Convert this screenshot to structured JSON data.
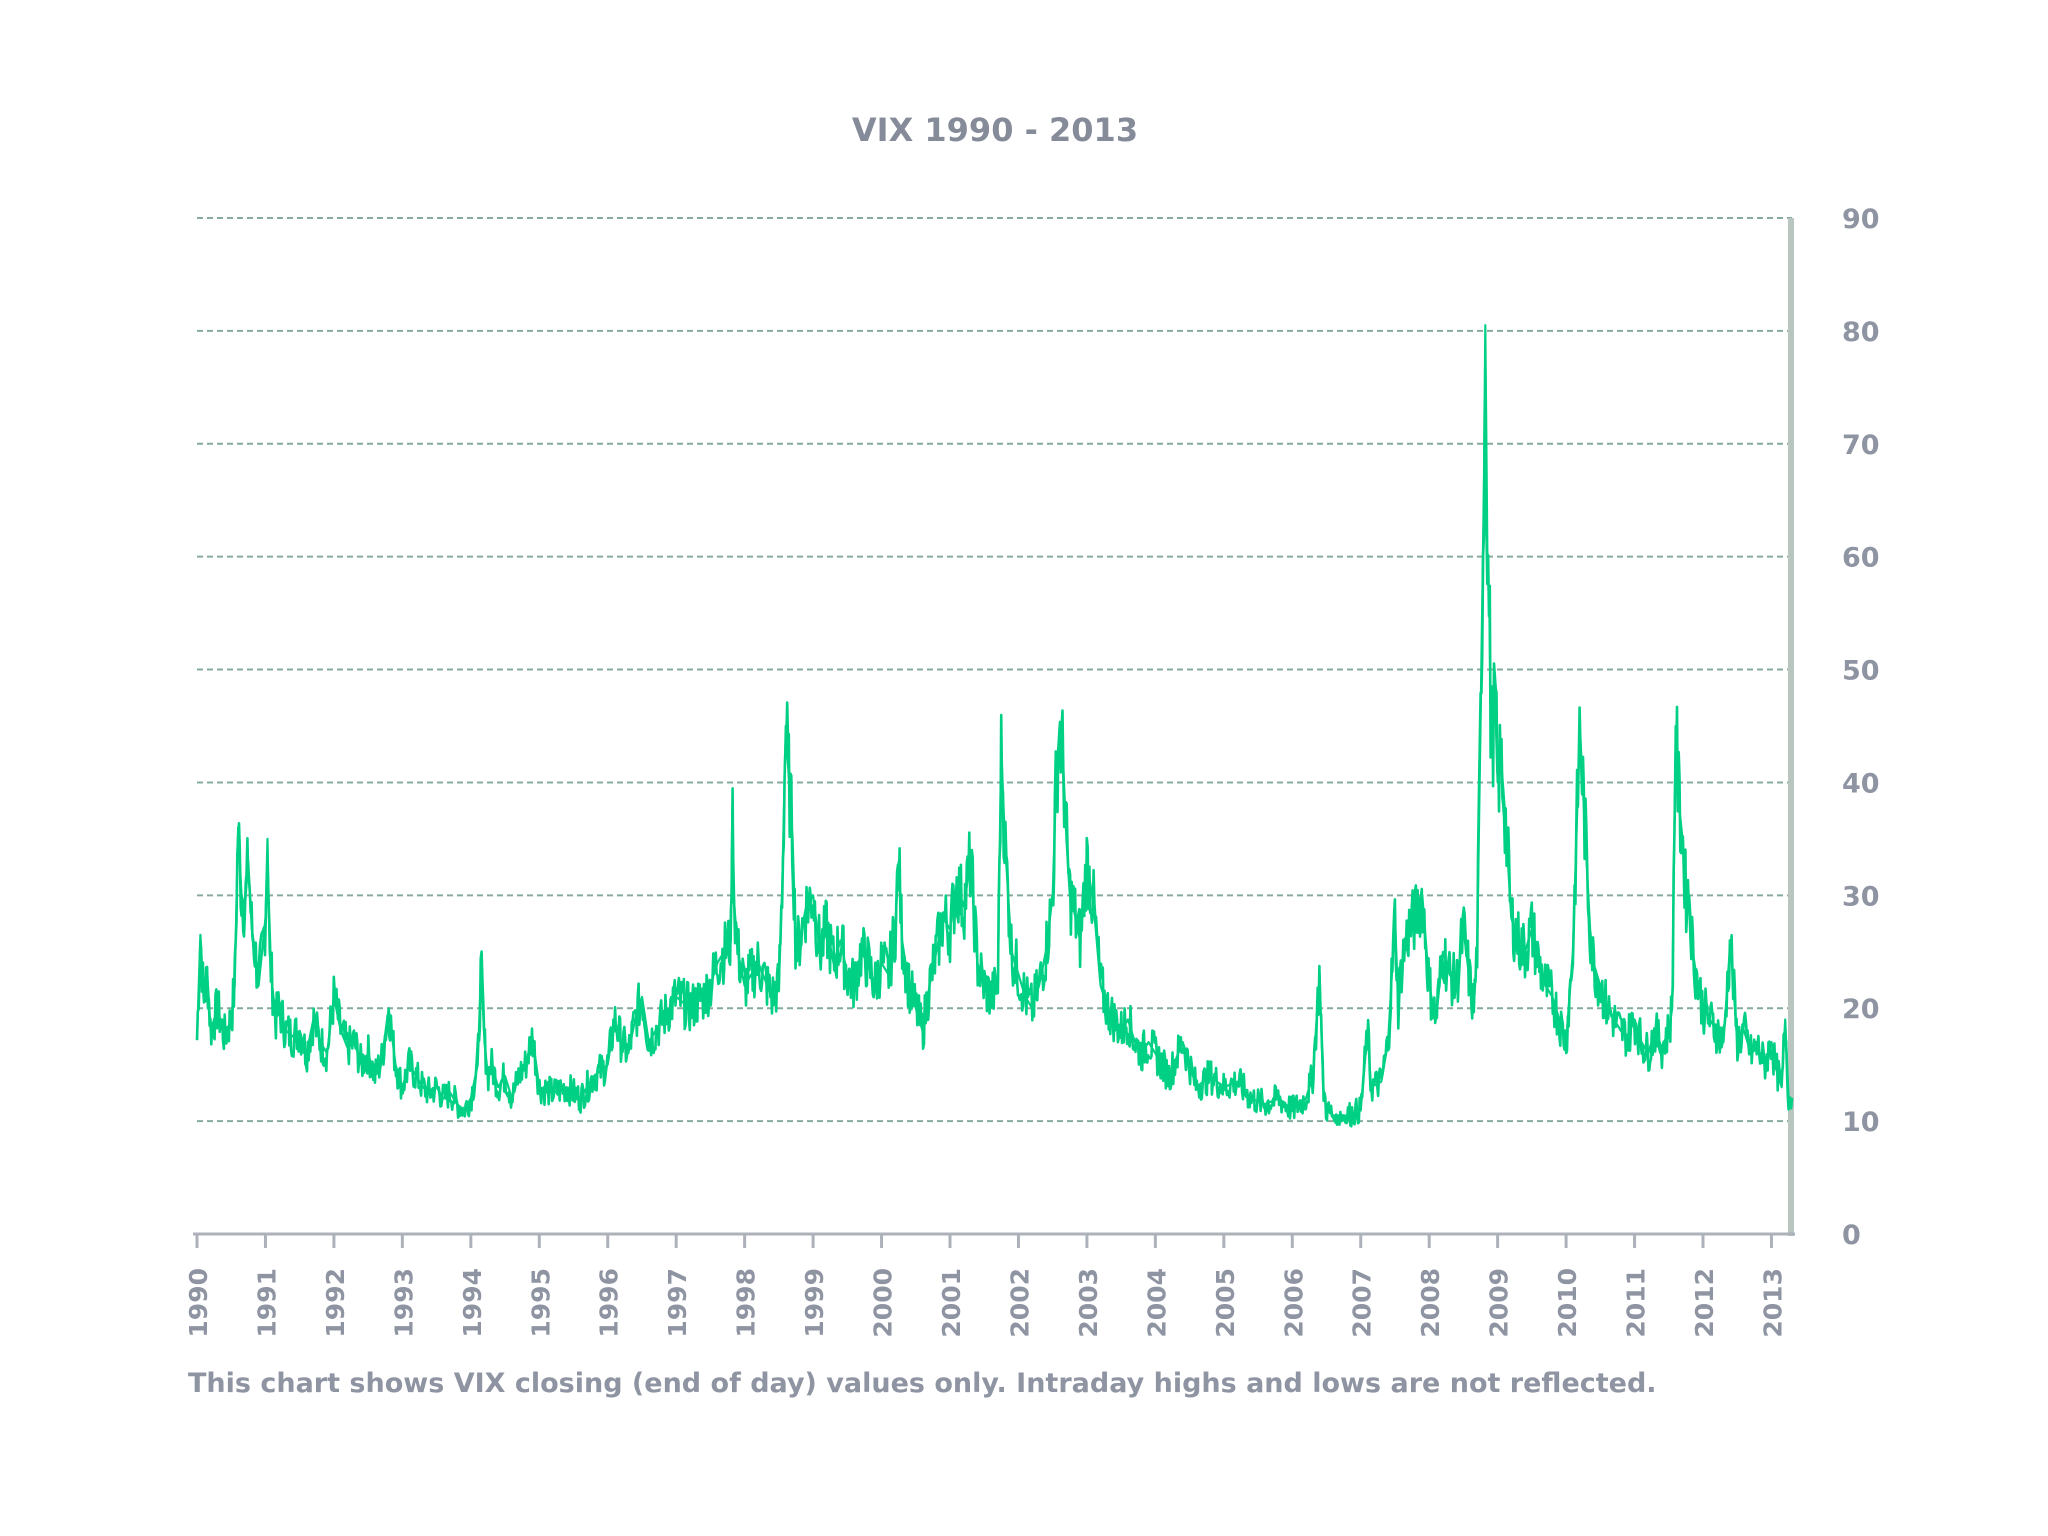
{
  "chart_data": {
    "type": "line",
    "title": "VIX 1990 - 2013",
    "footnote": "This chart shows VIX closing (end of day) values only. Intraday highs and lows are not reflected.",
    "xlabel": "",
    "ylabel": "",
    "xlim": [
      1990,
      2013.3
    ],
    "ylim": [
      0,
      90
    ],
    "x_ticks": [
      "1990",
      "1991",
      "1992",
      "1993",
      "1994",
      "1995",
      "1996",
      "1997",
      "1998",
      "1999",
      "2000",
      "2001",
      "2002",
      "2003",
      "2004",
      "2005",
      "2006",
      "2007",
      "2008",
      "2009",
      "2010",
      "2011",
      "2012",
      "2013"
    ],
    "y_ticks": [
      "0",
      "10",
      "20",
      "30",
      "40",
      "50",
      "60",
      "70",
      "80",
      "90"
    ],
    "y_axis_position": "right",
    "grid": "horizontal-dashed",
    "line_color": "#00d084",
    "series": [
      {
        "x": [
          1990.0,
          1990.05,
          1990.1,
          1990.15,
          1990.2,
          1990.3,
          1990.4,
          1990.5,
          1990.55,
          1990.6,
          1990.65,
          1990.7,
          1990.75,
          1990.8,
          1990.85,
          1990.9,
          1991.0,
          1991.03,
          1991.06,
          1991.1,
          1991.15,
          1991.2,
          1991.3,
          1991.4,
          1991.5,
          1991.6,
          1991.7,
          1991.8,
          1991.9,
          1992.0,
          1992.1,
          1992.2,
          1992.3,
          1992.4,
          1992.5,
          1992.6,
          1992.7,
          1992.8,
          1992.9,
          1993.0,
          1993.1,
          1993.2,
          1993.3,
          1993.4,
          1993.5,
          1993.6,
          1993.7,
          1993.8,
          1993.9,
          1994.0,
          1994.1,
          1994.15,
          1994.2,
          1994.25,
          1994.3,
          1994.4,
          1994.5,
          1994.6,
          1994.7,
          1994.8,
          1994.9,
          1995.0,
          1995.2,
          1995.4,
          1995.6,
          1995.8,
          1996.0,
          1996.1,
          1996.2,
          1996.3,
          1996.4,
          1996.5,
          1996.6,
          1996.7,
          1996.8,
          1996.9,
          1997.0,
          1997.2,
          1997.4,
          1997.5,
          1997.6,
          1997.7,
          1997.8,
          1997.82,
          1997.85,
          1997.9,
          1998.0,
          1998.2,
          1998.4,
          1998.5,
          1998.55,
          1998.6,
          1998.65,
          1998.7,
          1998.75,
          1998.8,
          1998.9,
          1999.0,
          1999.1,
          1999.2,
          1999.3,
          1999.4,
          1999.5,
          1999.6,
          1999.7,
          1999.8,
          1999.9,
          2000.0,
          2000.1,
          2000.2,
          2000.25,
          2000.3,
          2000.4,
          2000.5,
          2000.6,
          2000.7,
          2000.8,
          2000.9,
          2001.0,
          2001.1,
          2001.2,
          2001.3,
          2001.4,
          2001.5,
          2001.6,
          2001.7,
          2001.72,
          2001.75,
          2001.8,
          2001.9,
          2002.0,
          2002.1,
          2002.2,
          2002.3,
          2002.4,
          2002.5,
          2002.55,
          2002.6,
          2002.65,
          2002.7,
          2002.75,
          2002.8,
          2002.9,
          2003.0,
          2003.1,
          2003.2,
          2003.3,
          2003.4,
          2003.5,
          2003.6,
          2003.7,
          2003.8,
          2003.9,
          2004.0,
          2004.2,
          2004.4,
          2004.6,
          2004.8,
          2005.0,
          2005.2,
          2005.4,
          2005.6,
          2005.8,
          2006.0,
          2006.2,
          2006.3,
          2006.4,
          2006.45,
          2006.5,
          2006.6,
          2006.8,
          2007.0,
          2007.1,
          2007.15,
          2007.3,
          2007.4,
          2007.5,
          2007.55,
          2007.6,
          2007.7,
          2007.8,
          2007.9,
          2008.0,
          2008.1,
          2008.2,
          2008.3,
          2008.4,
          2008.5,
          2008.6,
          2008.65,
          2008.7,
          2008.75,
          2008.8,
          2008.82,
          2008.85,
          2008.88,
          2008.9,
          2008.93,
          2008.96,
          2009.0,
          2009.05,
          2009.1,
          2009.15,
          2009.2,
          2009.3,
          2009.4,
          2009.5,
          2009.6,
          2009.7,
          2009.8,
          2009.9,
          2010.0,
          2010.1,
          2010.2,
          2010.3,
          2010.35,
          2010.4,
          2010.45,
          2010.5,
          2010.6,
          2010.7,
          2010.8,
          2010.9,
          2011.0,
          2011.1,
          2011.2,
          2011.3,
          2011.4,
          2011.5,
          2011.55,
          2011.6,
          2011.65,
          2011.7,
          2011.75,
          2011.8,
          2011.85,
          2011.9,
          2012.0,
          2012.1,
          2012.2,
          2012.3,
          2012.4,
          2012.5,
          2012.6,
          2012.7,
          2012.8,
          2012.9,
          2013.0,
          2013.05,
          2013.1,
          2013.15,
          2013.2,
          2013.25
        ],
        "values": [
          17.2,
          26.5,
          20.5,
          23.0,
          18.0,
          20.0,
          17.5,
          19.0,
          22.0,
          36.0,
          30.0,
          29.0,
          33.0,
          27.0,
          25.0,
          22.0,
          28.0,
          35.0,
          25.0,
          22.0,
          19.0,
          20.0,
          18.0,
          17.5,
          18.0,
          16.0,
          19.0,
          17.0,
          16.0,
          21.0,
          18.0,
          16.5,
          17.0,
          15.0,
          16.0,
          14.0,
          15.5,
          20.0,
          15.0,
          13.0,
          15.0,
          14.0,
          13.0,
          12.5,
          13.0,
          12.0,
          12.5,
          11.5,
          11.0,
          12.0,
          15.0,
          23.5,
          17.0,
          14.0,
          15.0,
          13.0,
          14.0,
          12.0,
          14.0,
          15.0,
          17.5,
          13.0,
          12.5,
          13.0,
          12.0,
          14.0,
          15.0,
          19.0,
          17.0,
          16.0,
          19.0,
          21.0,
          17.0,
          18.0,
          19.0,
          20.0,
          21.0,
          20.0,
          21.0,
          22.0,
          24.0,
          25.0,
          26.0,
          38.0,
          29.0,
          25.0,
          22.0,
          24.0,
          21.0,
          22.0,
          31.0,
          45.0,
          40.0,
          35.0,
          25.0,
          26.0,
          29.0,
          30.0,
          25.0,
          27.0,
          24.0,
          26.0,
          23.0,
          22.0,
          25.0,
          24.0,
          22.0,
          24.0,
          23.0,
          27.0,
          33.0,
          26.0,
          22.0,
          20.0,
          18.0,
          22.0,
          25.0,
          28.0,
          27.0,
          31.0,
          29.0,
          33.0,
          24.0,
          22.0,
          21.0,
          22.0,
          32.0,
          43.0,
          35.0,
          25.0,
          23.0,
          21.0,
          20.0,
          22.0,
          25.0,
          30.0,
          40.0,
          45.0,
          42.0,
          35.0,
          30.0,
          29.0,
          26.0,
          33.0,
          29.0,
          22.0,
          20.0,
          19.0,
          18.0,
          19.0,
          17.0,
          16.0,
          17.0,
          16.0,
          14.0,
          17.0,
          13.0,
          14.0,
          13.0,
          13.5,
          12.0,
          11.5,
          12.0,
          11.0,
          12.0,
          14.0,
          23.0,
          13.0,
          11.0,
          10.5,
          10.5,
          11.0,
          18.0,
          13.0,
          13.5,
          17.0,
          28.0,
          20.0,
          24.0,
          27.0,
          28.0,
          30.0,
          22.0,
          19.0,
          25.0,
          23.0,
          22.0,
          27.0,
          22.0,
          20.0,
          25.0,
          45.0,
          67.0,
          80.5,
          60.0,
          55.0,
          45.0,
          44.0,
          48.0,
          40.0,
          42.0,
          38.0,
          33.0,
          28.0,
          26.0,
          25.0,
          27.0,
          24.0,
          22.0,
          21.0,
          19.0,
          17.0,
          25.0,
          45.0,
          33.0,
          27.0,
          24.0,
          23.0,
          22.0,
          20.0,
          19.0,
          18.0,
          17.5,
          19.0,
          17.0,
          16.0,
          18.0,
          16.5,
          18.0,
          20.0,
          45.0,
          38.0,
          35.0,
          30.0,
          30.0,
          25.0,
          23.0,
          20.0,
          19.0,
          18.0,
          17.0,
          26.0,
          17.0,
          18.0,
          16.0,
          16.5,
          15.0,
          17.0,
          15.0,
          14.0,
          13.0,
          19.0,
          12.0
        ]
      }
    ]
  }
}
